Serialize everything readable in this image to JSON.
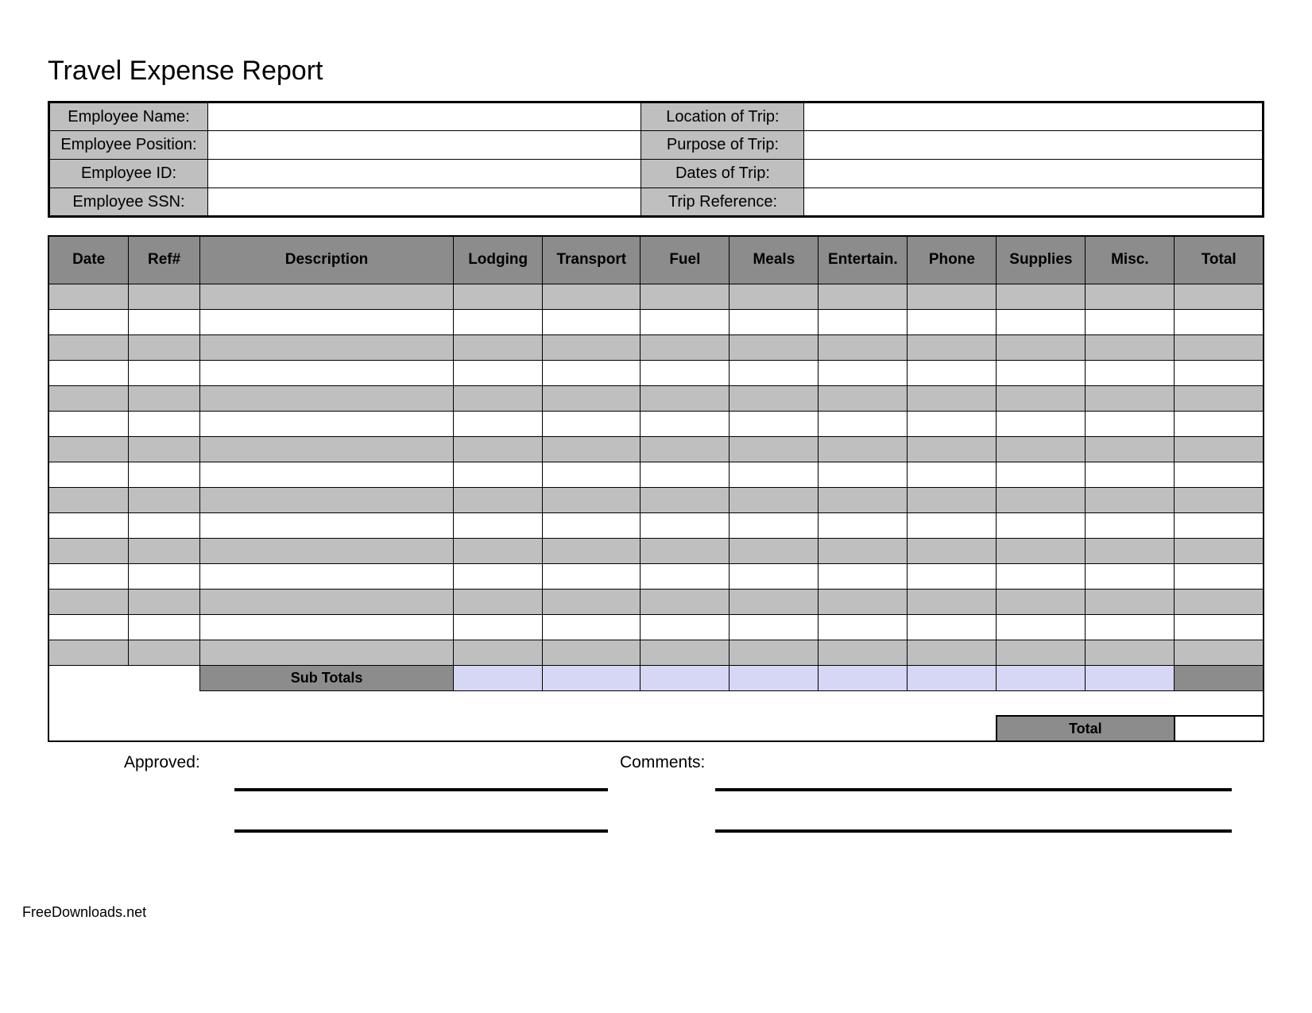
{
  "title": "Travel Expense Report",
  "colors": {
    "header_bg": "#8c8c8c",
    "label_bg": "#bfbfbf",
    "row_odd_bg": "#bfbfbf",
    "row_even_bg": "#ffffff",
    "subtotal_bg": "#d6d6f5",
    "border": "#000000",
    "page_bg": "#ffffff"
  },
  "info": {
    "left": [
      {
        "label": "Employee Name:",
        "value": ""
      },
      {
        "label": "Employee Position:",
        "value": ""
      },
      {
        "label": "Employee ID:",
        "value": ""
      },
      {
        "label": "Employee SSN:",
        "value": ""
      }
    ],
    "right": [
      {
        "label": "Location of Trip:",
        "value": ""
      },
      {
        "label": "Purpose of Trip:",
        "value": ""
      },
      {
        "label": "Dates of Trip:",
        "value": ""
      },
      {
        "label": "Trip Reference:",
        "value": ""
      }
    ]
  },
  "expense": {
    "columns": [
      "Date",
      "Ref#",
      "Description",
      "Lodging",
      "Transport",
      "Fuel",
      "Meals",
      "Entertain.",
      "Phone",
      "Supplies",
      "Misc.",
      "Total"
    ],
    "rows": [
      [
        "",
        "",
        "",
        "",
        "",
        "",
        "",
        "",
        "",
        "",
        "",
        ""
      ],
      [
        "",
        "",
        "",
        "",
        "",
        "",
        "",
        "",
        "",
        "",
        "",
        ""
      ],
      [
        "",
        "",
        "",
        "",
        "",
        "",
        "",
        "",
        "",
        "",
        "",
        ""
      ],
      [
        "",
        "",
        "",
        "",
        "",
        "",
        "",
        "",
        "",
        "",
        "",
        ""
      ],
      [
        "",
        "",
        "",
        "",
        "",
        "",
        "",
        "",
        "",
        "",
        "",
        ""
      ],
      [
        "",
        "",
        "",
        "",
        "",
        "",
        "",
        "",
        "",
        "",
        "",
        ""
      ],
      [
        "",
        "",
        "",
        "",
        "",
        "",
        "",
        "",
        "",
        "",
        "",
        ""
      ],
      [
        "",
        "",
        "",
        "",
        "",
        "",
        "",
        "",
        "",
        "",
        "",
        ""
      ],
      [
        "",
        "",
        "",
        "",
        "",
        "",
        "",
        "",
        "",
        "",
        "",
        ""
      ],
      [
        "",
        "",
        "",
        "",
        "",
        "",
        "",
        "",
        "",
        "",
        "",
        ""
      ],
      [
        "",
        "",
        "",
        "",
        "",
        "",
        "",
        "",
        "",
        "",
        "",
        ""
      ],
      [
        "",
        "",
        "",
        "",
        "",
        "",
        "",
        "",
        "",
        "",
        "",
        ""
      ],
      [
        "",
        "",
        "",
        "",
        "",
        "",
        "",
        "",
        "",
        "",
        "",
        ""
      ],
      [
        "",
        "",
        "",
        "",
        "",
        "",
        "",
        "",
        "",
        "",
        "",
        ""
      ],
      [
        "",
        "",
        "",
        "",
        "",
        "",
        "",
        "",
        "",
        "",
        "",
        ""
      ]
    ],
    "subtotals_label": "Sub Totals",
    "subtotals": [
      "",
      "",
      "",
      "",
      "",
      "",
      "",
      "",
      ""
    ],
    "total_label": "Total",
    "total_value": ""
  },
  "footer": {
    "approved_label": "Approved:",
    "comments_label": "Comments:"
  },
  "watermark": "FreeDownloads.net"
}
